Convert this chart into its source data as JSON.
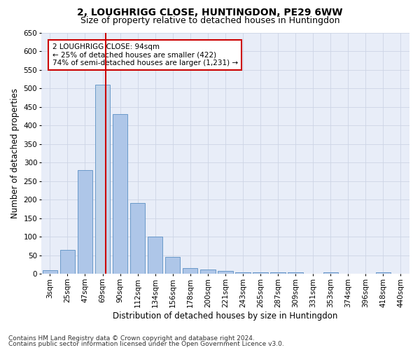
{
  "title": "2, LOUGHRIGG CLOSE, HUNTINGDON, PE29 6WW",
  "subtitle": "Size of property relative to detached houses in Huntingdon",
  "xlabel": "Distribution of detached houses by size in Huntingdon",
  "ylabel": "Number of detached properties",
  "bar_labels": [
    "3sqm",
    "25sqm",
    "47sqm",
    "69sqm",
    "90sqm",
    "112sqm",
    "134sqm",
    "156sqm",
    "178sqm",
    "200sqm",
    "221sqm",
    "243sqm",
    "265sqm",
    "287sqm",
    "309sqm",
    "331sqm",
    "353sqm",
    "374sqm",
    "396sqm",
    "418sqm",
    "440sqm"
  ],
  "bar_values": [
    10,
    65,
    280,
    510,
    430,
    190,
    100,
    45,
    15,
    11,
    8,
    5,
    5,
    5,
    5,
    0,
    5,
    0,
    0,
    5,
    0
  ],
  "bar_color": "#aec6e8",
  "bar_edge_color": "#5b8fc3",
  "highlight_bar_index": 3,
  "highlight_bar_color": "#c0d4ea",
  "vline_x": 3.18,
  "vline_color": "#cc0000",
  "annotation_text": "2 LOUGHRIGG CLOSE: 94sqm\n← 25% of detached houses are smaller (422)\n74% of semi-detached houses are larger (1,231) →",
  "annotation_box_color": "#ffffff",
  "annotation_box_edge": "#cc0000",
  "ylim": [
    0,
    650
  ],
  "yticks": [
    0,
    50,
    100,
    150,
    200,
    250,
    300,
    350,
    400,
    450,
    500,
    550,
    600,
    650
  ],
  "grid_color": "#cdd5e5",
  "bg_color": "#e8edf8",
  "footer1": "Contains HM Land Registry data © Crown copyright and database right 2024.",
  "footer2": "Contains public sector information licensed under the Open Government Licence v3.0.",
  "title_fontsize": 10,
  "subtitle_fontsize": 9,
  "xlabel_fontsize": 8.5,
  "ylabel_fontsize": 8.5,
  "tick_fontsize": 7.5,
  "annotation_fontsize": 7.5,
  "footer_fontsize": 6.5
}
